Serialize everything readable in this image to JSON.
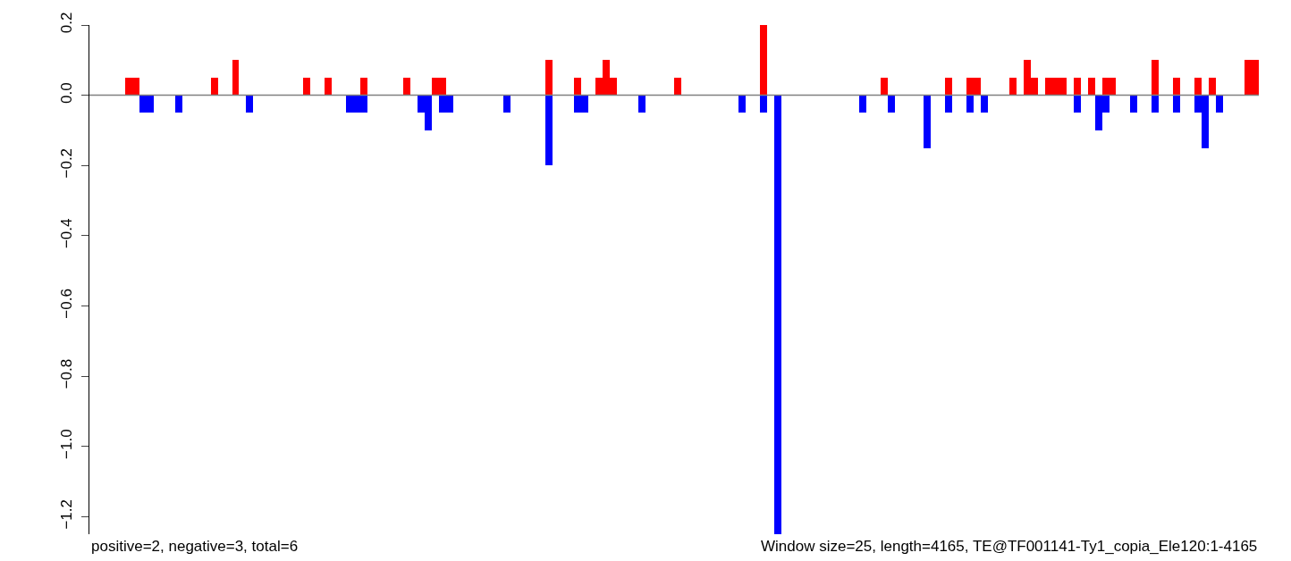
{
  "chart_data": {
    "type": "bar",
    "categories": [
      null,
      null,
      null,
      null,
      null,
      null,
      null,
      null,
      null,
      null,
      null,
      null,
      null,
      null,
      null,
      null,
      null,
      null,
      null,
      null,
      null,
      null,
      null,
      null,
      null,
      null,
      null,
      null,
      null,
      null,
      null,
      null,
      null,
      null,
      null,
      null,
      null,
      null,
      null,
      null,
      null,
      null,
      null,
      null,
      null,
      null,
      null,
      null,
      null,
      null,
      null,
      null,
      null,
      null,
      null,
      null,
      null,
      null,
      null,
      null,
      null,
      null,
      null,
      null,
      null,
      null,
      null,
      null,
      null,
      null,
      null,
      null,
      null,
      null,
      null,
      null,
      null,
      null,
      null,
      null,
      null,
      null,
      null,
      null,
      null,
      null,
      null,
      null,
      null,
      null,
      null,
      null,
      null,
      null,
      null,
      null,
      null,
      null,
      null,
      null,
      null,
      null,
      null,
      null,
      null,
      null,
      null,
      null,
      null,
      null,
      null,
      null,
      null,
      null,
      null,
      null,
      null,
      null,
      null,
      null,
      null,
      null,
      null,
      null,
      null,
      null,
      null,
      null,
      null,
      null,
      null,
      null,
      null,
      null,
      null,
      null,
      null,
      null,
      null,
      null,
      null,
      null,
      null,
      null,
      null,
      null,
      null,
      null,
      null,
      null,
      null,
      null,
      null,
      null,
      null,
      null,
      null,
      null,
      null,
      null,
      null,
      null,
      null,
      null
    ],
    "series": [
      {
        "color": "#ff0000",
        "values": [
          null,
          null,
          null,
          null,
          null,
          0.05,
          0.05,
          null,
          null,
          null,
          null,
          null,
          null,
          null,
          null,
          null,
          null,
          0.05,
          null,
          null,
          0.1,
          null,
          null,
          null,
          null,
          null,
          null,
          null,
          null,
          null,
          0.05,
          null,
          null,
          0.05,
          null,
          null,
          null,
          null,
          0.05,
          null,
          null,
          null,
          null,
          null,
          0.05,
          null,
          null,
          null,
          0.05,
          0.05,
          null,
          null,
          null,
          null,
          null,
          null,
          null,
          null,
          null,
          null,
          null,
          null,
          null,
          null,
          0.1,
          null,
          null,
          null,
          0.05,
          null,
          null,
          0.05,
          0.1,
          0.05,
          null,
          null,
          null,
          null,
          null,
          null,
          null,
          null,
          0.05,
          null,
          null,
          null,
          null,
          null,
          null,
          null,
          null,
          null,
          null,
          null,
          0.2,
          null,
          null,
          null,
          null,
          null,
          null,
          null,
          null,
          null,
          null,
          null,
          null,
          null,
          null,
          null,
          null,
          0.05,
          null,
          null,
          null,
          null,
          null,
          null,
          null,
          null,
          0.05,
          null,
          null,
          0.05,
          0.05,
          null,
          null,
          null,
          null,
          0.05,
          null,
          0.1,
          0.05,
          null,
          0.05,
          0.05,
          0.05,
          null,
          0.05,
          null,
          0.05,
          null,
          0.05,
          0.05,
          null,
          null,
          null,
          null,
          null,
          0.1,
          null,
          null,
          0.05,
          null,
          null,
          0.05,
          null,
          0.05,
          null,
          null,
          null,
          null,
          0.1,
          0.1
        ]
      },
      {
        "color": "#0000ff",
        "values": [
          null,
          null,
          null,
          null,
          null,
          null,
          null,
          -0.05,
          -0.05,
          null,
          null,
          null,
          -0.05,
          null,
          null,
          null,
          null,
          null,
          null,
          null,
          null,
          null,
          -0.05,
          null,
          null,
          null,
          null,
          null,
          null,
          null,
          null,
          null,
          null,
          null,
          null,
          null,
          -0.05,
          -0.05,
          -0.05,
          null,
          null,
          null,
          null,
          null,
          null,
          null,
          -0.05,
          -0.1,
          null,
          -0.05,
          -0.05,
          null,
          null,
          null,
          null,
          null,
          null,
          null,
          -0.05,
          null,
          null,
          null,
          null,
          null,
          -0.2,
          null,
          null,
          null,
          -0.05,
          -0.05,
          null,
          null,
          null,
          null,
          null,
          null,
          null,
          -0.05,
          null,
          null,
          null,
          null,
          null,
          null,
          null,
          null,
          null,
          null,
          null,
          null,
          null,
          -0.05,
          null,
          null,
          -0.05,
          null,
          -1.25,
          null,
          null,
          null,
          null,
          null,
          null,
          null,
          null,
          null,
          null,
          null,
          -0.05,
          null,
          null,
          null,
          -0.05,
          null,
          null,
          null,
          null,
          -0.15,
          null,
          null,
          -0.05,
          null,
          null,
          -0.05,
          null,
          -0.05,
          null,
          null,
          null,
          null,
          null,
          null,
          null,
          null,
          null,
          null,
          null,
          null,
          -0.05,
          null,
          null,
          -0.1,
          -0.05,
          null,
          null,
          null,
          -0.05,
          null,
          null,
          -0.05,
          null,
          null,
          -0.05,
          null,
          null,
          -0.05,
          -0.15,
          null,
          -0.05,
          null,
          null,
          null,
          null,
          null
        ]
      }
    ],
    "ylim": [
      -1.25,
      0.2
    ],
    "yticks": [
      {
        "value": 0.2,
        "label": "0.2"
      },
      {
        "value": 0,
        "label": "0.0"
      },
      {
        "value": -0.2,
        "label": "−0.2"
      },
      {
        "value": -0.4,
        "label": "−0.4"
      },
      {
        "value": -0.6,
        "label": "−0.6"
      },
      {
        "value": -0.8,
        "label": "−0.8"
      },
      {
        "value": -1,
        "label": "−1.0"
      },
      {
        "value": -1.2,
        "label": "−1.2"
      }
    ],
    "ref_lines": [
      {
        "axis": "y",
        "value": 0,
        "color": "#808080"
      }
    ],
    "tick_labels": "y",
    "annotations": [
      "positive=2, negative=3, total=6",
      "Window size=25, length=4165, TE@TF001141-Ty1_copia_Ele120:1-4165"
    ]
  }
}
